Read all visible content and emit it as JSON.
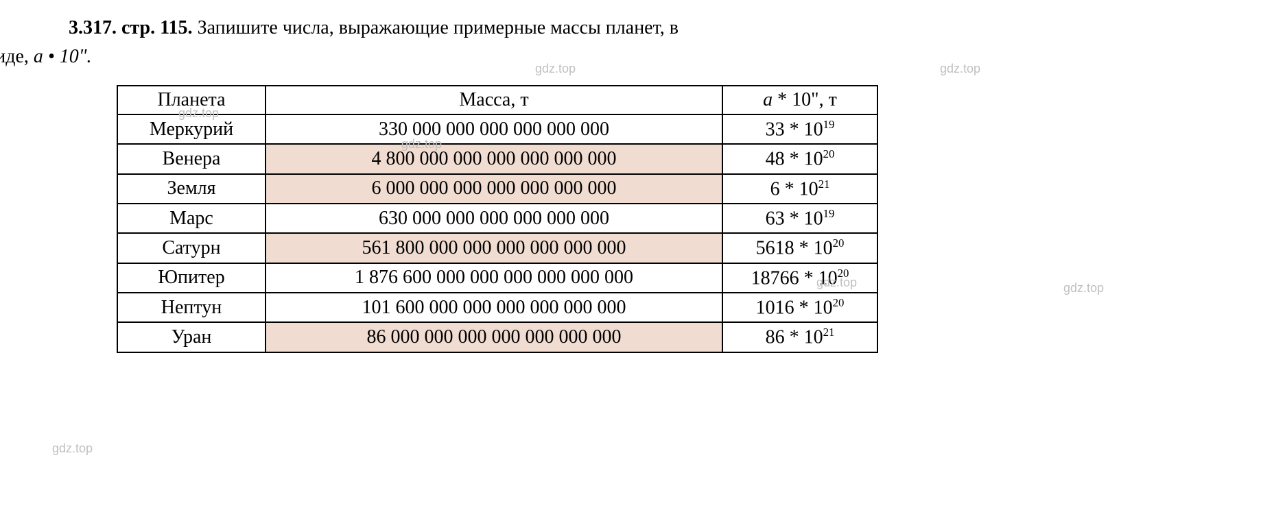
{
  "problem": {
    "number": "3.317.",
    "page": "стр. 115.",
    "text_part1": "Запишите числа, выражающие примерные массы планет, в",
    "text_part2": "виде, ",
    "text_formula": "a • 10\".",
    "text_color": "#000000"
  },
  "watermarks": {
    "wm1": "gdz.top",
    "wm2": "gdz.top",
    "wm3": "gdz.top",
    "wm4": "gdz.top",
    "wm5": "gdz.top",
    "wm6": "gdz.top",
    "wm7": "gdz.top",
    "color": "#c0c0c0"
  },
  "table": {
    "headers": {
      "col1": "Планета",
      "col2": "Масса, т",
      "col3_prefix": "a",
      "col3_suffix": " * 10\", т"
    },
    "rows": [
      {
        "planet": "Меркурий",
        "mass": "330 000 000 000 000 000 000",
        "coef": "33",
        "exp": "19",
        "highlight": false
      },
      {
        "planet": "Венера",
        "mass": "4 800 000 000 000 000 000 000",
        "coef": "48",
        "exp": "20",
        "highlight": true
      },
      {
        "planet": "Земля",
        "mass": "6 000 000 000 000 000 000 000",
        "coef": "6",
        "exp": "21",
        "highlight": true
      },
      {
        "planet": "Марс",
        "mass": "630 000 000 000 000 000 000",
        "coef": "63",
        "exp": "19",
        "highlight": false
      },
      {
        "planet": "Сатурн",
        "mass": "561 800 000 000 000 000 000 000",
        "coef": "5618",
        "exp": "20",
        "highlight": true
      },
      {
        "planet": "Юпитер",
        "mass": "1 876 600 000 000 000 000 000 000",
        "coef": "18766",
        "exp": "20",
        "highlight": false
      },
      {
        "planet": "Нептун",
        "mass": "101 600 000 000 000 000 000 000",
        "coef": "1016",
        "exp": "20",
        "highlight": false
      },
      {
        "planet": "Уран",
        "mass": "86 000 000 000 000 000 000 000",
        "coef": "86",
        "exp": "21",
        "highlight": true
      }
    ],
    "highlight_color": "#f0dcd0",
    "border_color": "#000000",
    "column_widths": {
      "planet": 190,
      "mass": 640,
      "scientific": 200
    }
  },
  "layout": {
    "background_color": "#ffffff",
    "font_family": "Times New Roman",
    "base_font_size": 28
  }
}
